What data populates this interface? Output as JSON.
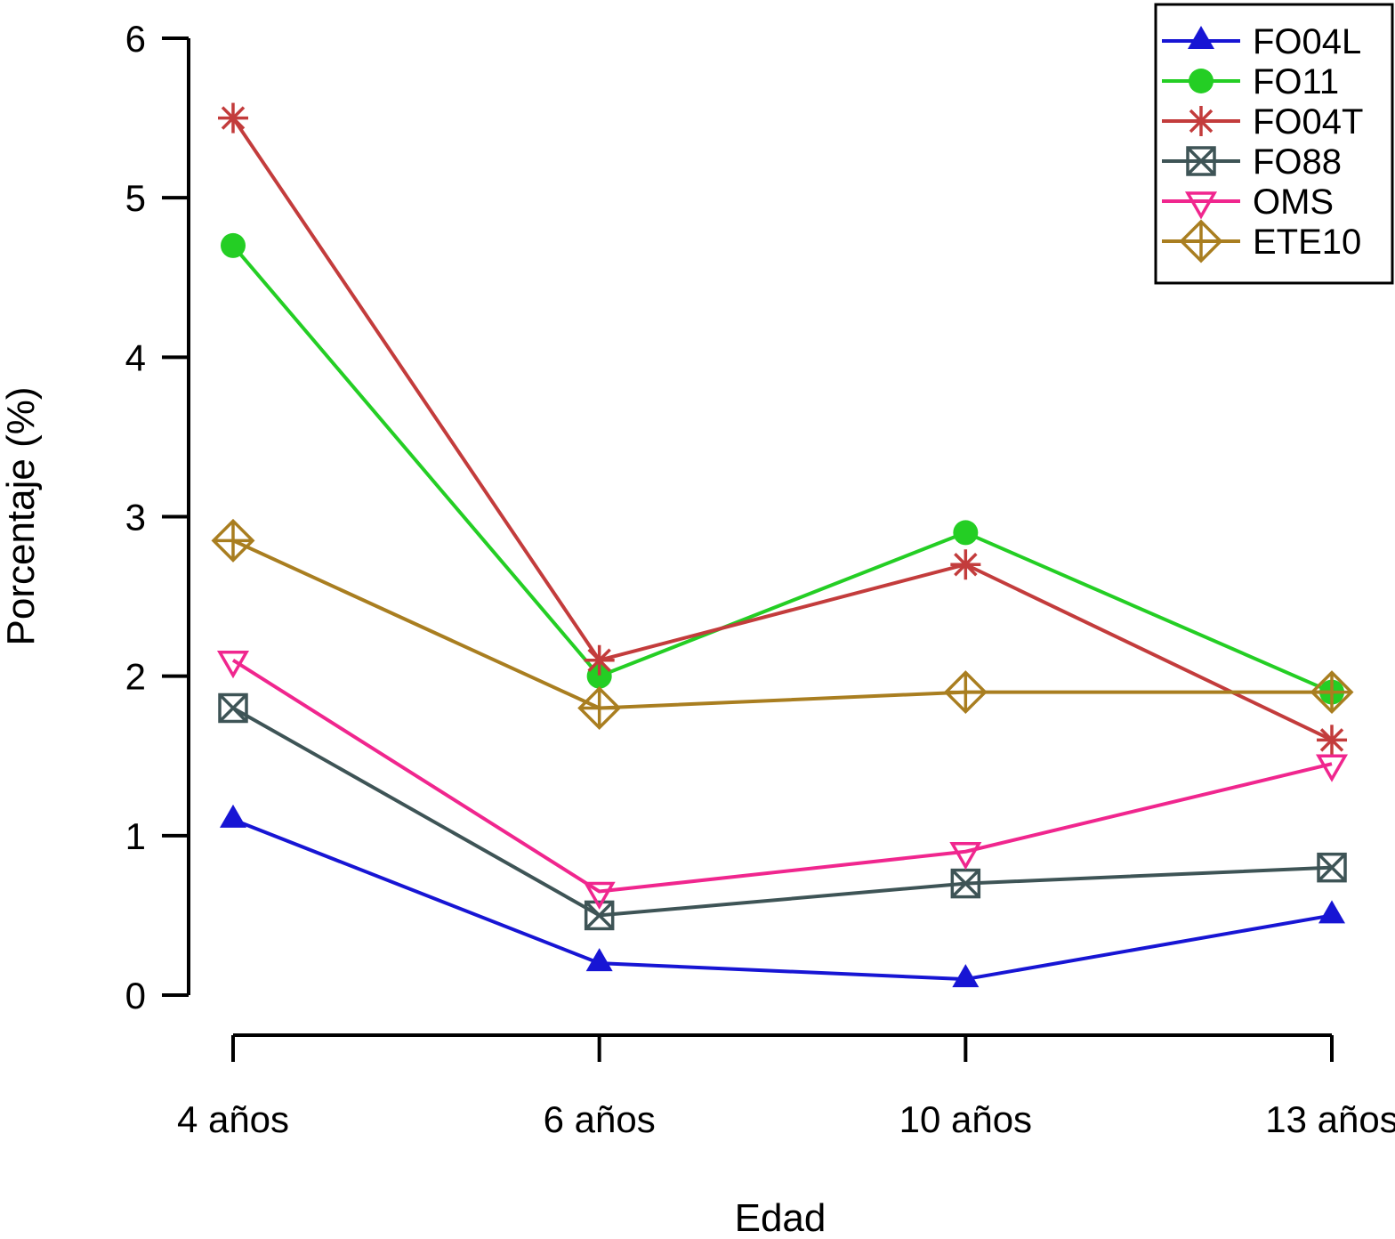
{
  "chart_data": {
    "type": "line",
    "title": "",
    "xlabel": "Edad",
    "ylabel": "Porcentaje (%)",
    "categories": [
      "4 años",
      "6 años",
      "10 años",
      "13 años"
    ],
    "ylim": [
      0,
      6
    ],
    "yticks": [
      0,
      1,
      2,
      3,
      4,
      5,
      6
    ],
    "grid": false,
    "legend_position": "top-right",
    "axis_color": "#000000",
    "background_color": "#ffffff",
    "series": [
      {
        "name": "FO04L",
        "color": "#1715D4",
        "marker": "triangle-up-filled",
        "values": [
          1.1,
          0.2,
          0.1,
          0.5
        ]
      },
      {
        "name": "FO11",
        "color": "#24CE24",
        "marker": "circle-filled",
        "values": [
          4.7,
          2.0,
          2.9,
          1.9
        ]
      },
      {
        "name": "FO04T",
        "color": "#C33C3C",
        "marker": "asterisk",
        "values": [
          5.5,
          2.1,
          2.7,
          1.6
        ]
      },
      {
        "name": "FO88",
        "color": "#3E5456",
        "marker": "square-x",
        "values": [
          1.8,
          0.5,
          0.7,
          0.8
        ]
      },
      {
        "name": "OMS",
        "color": "#F0268E",
        "marker": "triangle-down-open",
        "values": [
          2.1,
          0.65,
          0.9,
          1.45
        ]
      },
      {
        "name": "ETE10",
        "color": "#A97E20",
        "marker": "diamond-plus",
        "values": [
          2.85,
          1.8,
          1.9,
          1.9
        ]
      }
    ]
  }
}
